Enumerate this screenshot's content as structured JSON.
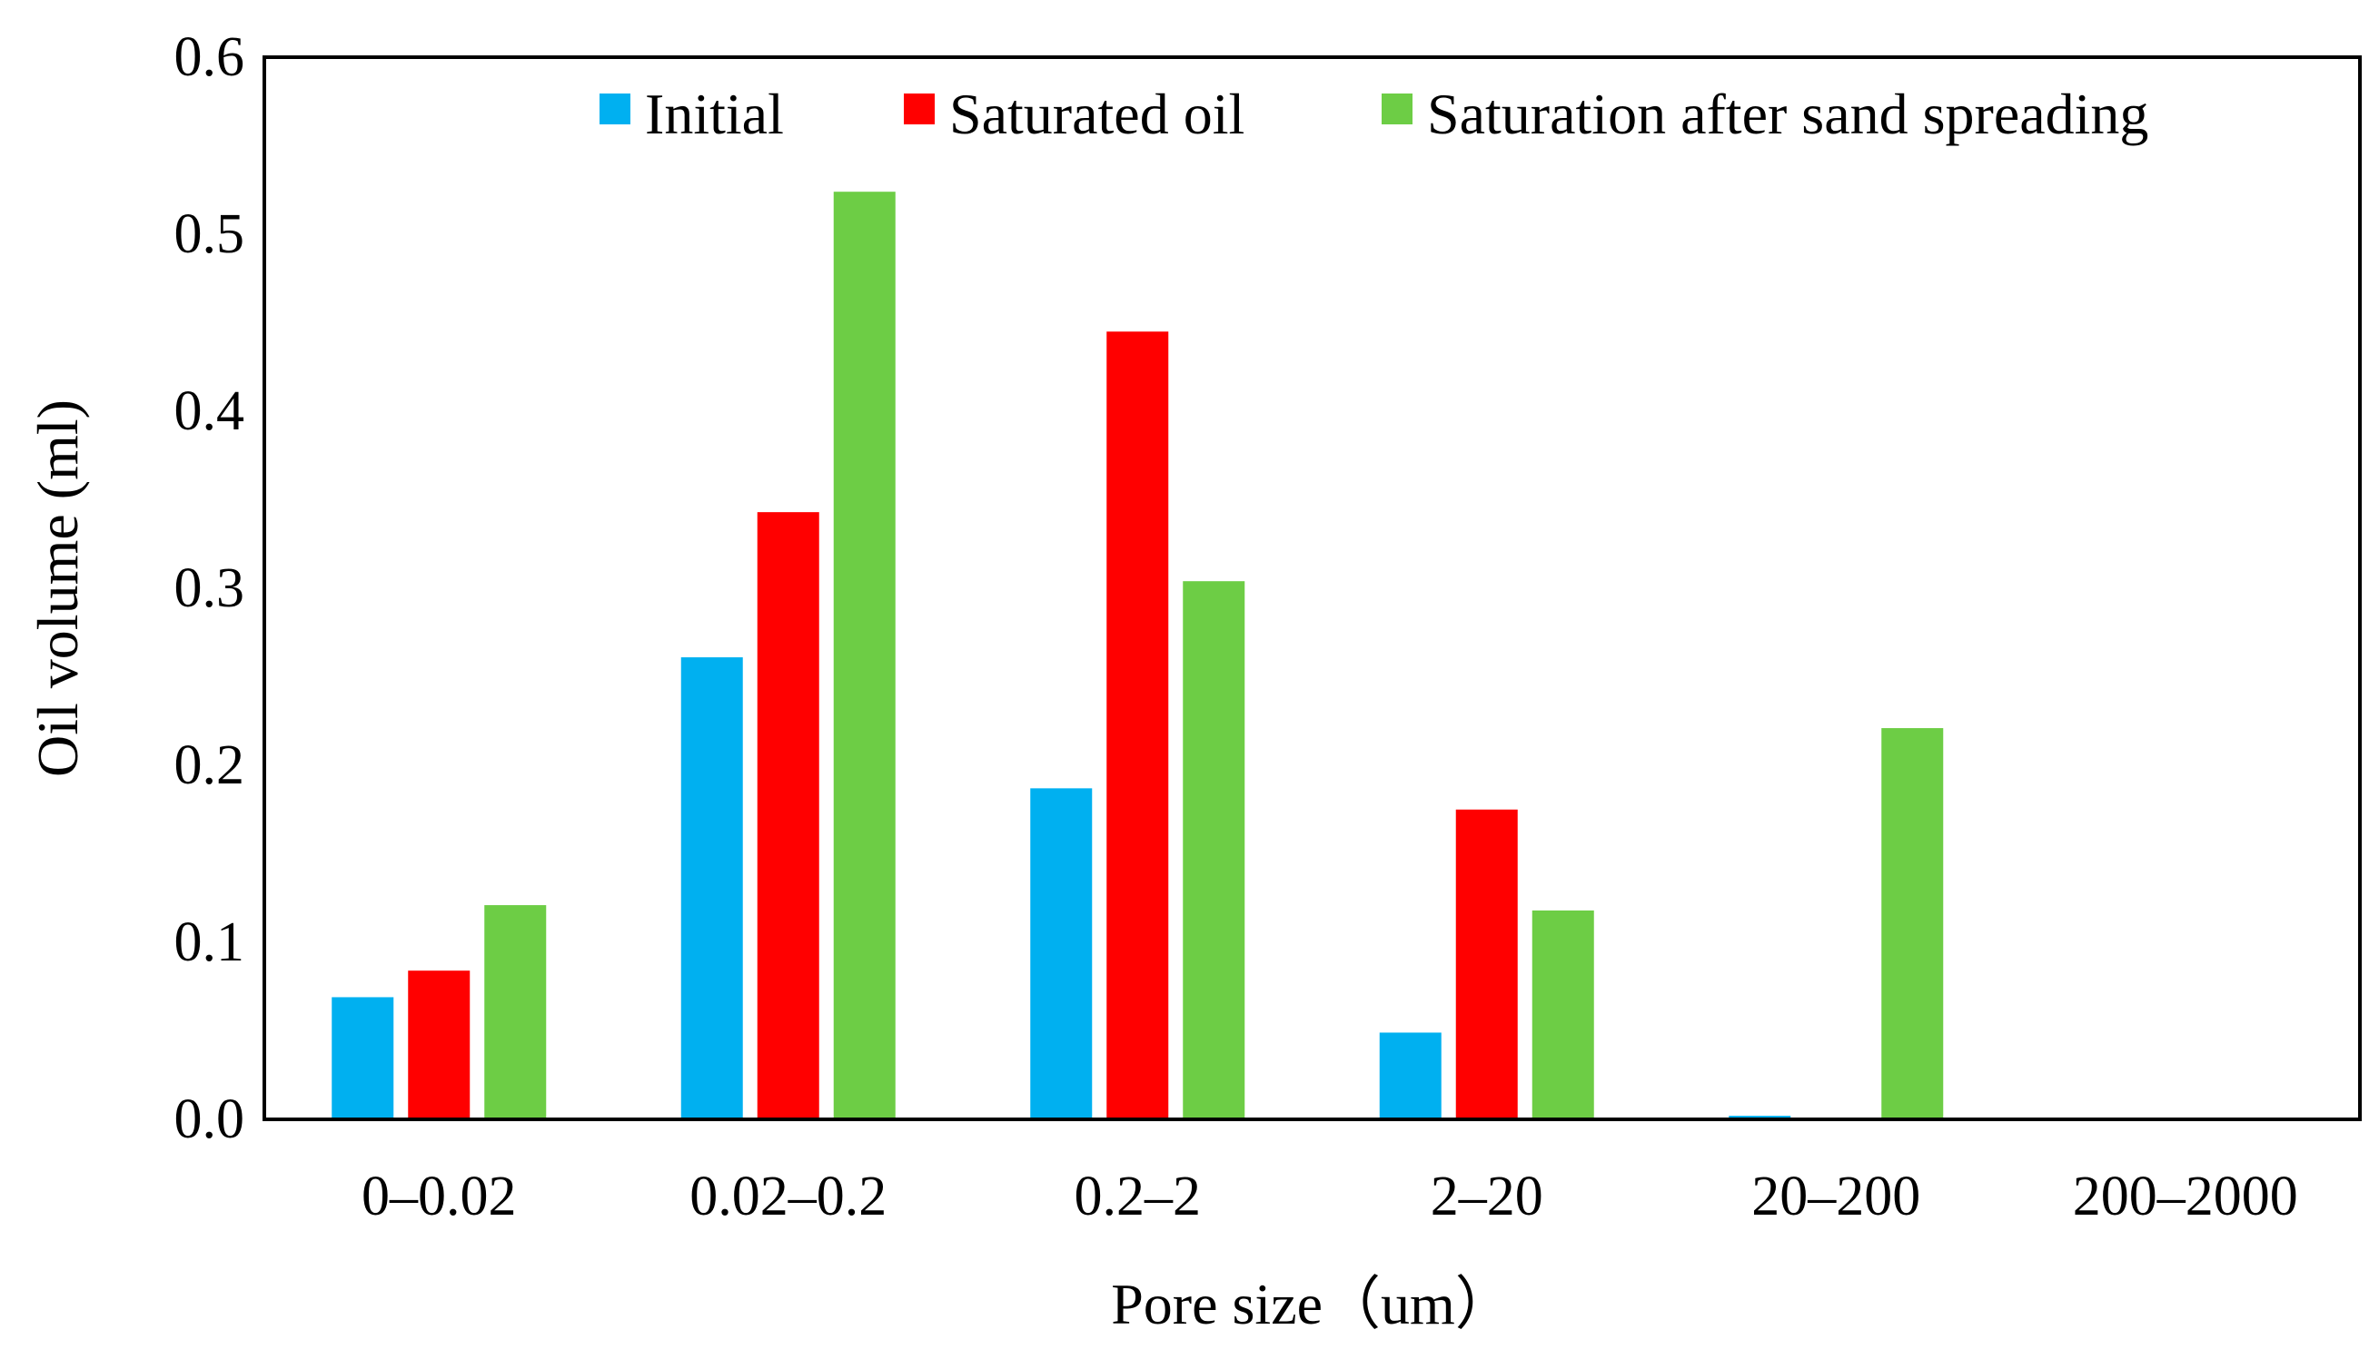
{
  "chart_data": {
    "type": "bar",
    "title": "",
    "xlabel": "Pore size（um）",
    "ylabel": "Oil volume (ml)",
    "ylim": [
      0,
      0.6
    ],
    "yticks": [
      "0.0",
      "0.1",
      "0.2",
      "0.3",
      "0.4",
      "0.5",
      "0.6"
    ],
    "categories": [
      "0–0.02",
      "0.02–0.2",
      "0.2–2",
      "2–20",
      "20–200",
      "200–2000"
    ],
    "series": [
      {
        "name": "Initial",
        "color": "#00B0F0",
        "values": [
          0.069,
          0.261,
          0.187,
          0.049,
          0.002,
          0.0
        ]
      },
      {
        "name": "Saturated oil",
        "color": "#FF0000",
        "values": [
          0.084,
          0.343,
          0.445,
          0.175,
          0.0,
          0.0
        ]
      },
      {
        "name": "Saturation after sand spreading",
        "color": "#6DCD45",
        "values": [
          0.121,
          0.524,
          0.304,
          0.118,
          0.221,
          0.001
        ]
      }
    ],
    "legend_position": "top-right",
    "grid": false
  }
}
